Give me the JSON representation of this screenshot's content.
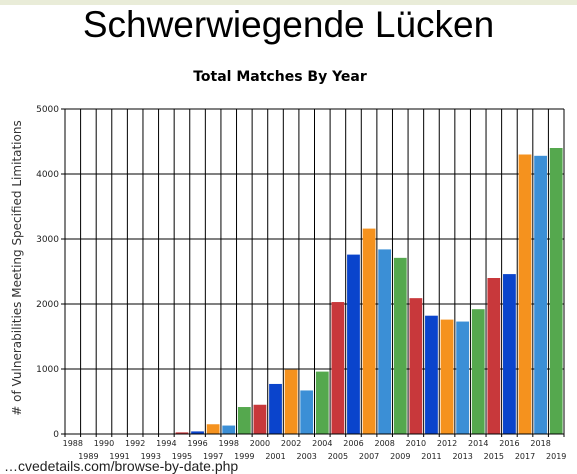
{
  "slide": {
    "title": "Schwerwiegende Lücken",
    "source_text": "…cvedetails.com/browse-by-date.php"
  },
  "chart_data": {
    "type": "bar",
    "title": "Total Matches By Year",
    "xlabel": "",
    "ylabel": "# of Vulnerabilities Meeting Specified Limitations",
    "ylim": [
      0,
      5000
    ],
    "yticks": [
      0,
      1000,
      2000,
      3000,
      4000,
      5000
    ],
    "grid": true,
    "categories": [
      "1988",
      "1989",
      "1990",
      "1991",
      "1992",
      "1993",
      "1994",
      "1995",
      "1996",
      "1997",
      "1998",
      "1999",
      "2000",
      "2001",
      "2002",
      "2003",
      "2004",
      "2005",
      "2006",
      "2007",
      "2008",
      "2009",
      "2010",
      "2011",
      "2012",
      "2013",
      "2014",
      "2015",
      "2016",
      "2017",
      "2018",
      "2019"
    ],
    "values": [
      1,
      2,
      2,
      2,
      2,
      3,
      3,
      25,
      40,
      150,
      130,
      415,
      450,
      770,
      990,
      670,
      960,
      2030,
      2760,
      3160,
      2840,
      2710,
      2090,
      1820,
      1760,
      1730,
      1920,
      2400,
      2460,
      4300,
      4280,
      4400
    ],
    "colors": [
      "#3b8fd6",
      "#55a84e",
      "#c8383b",
      "#0a44cc",
      "#f5921e"
    ]
  }
}
